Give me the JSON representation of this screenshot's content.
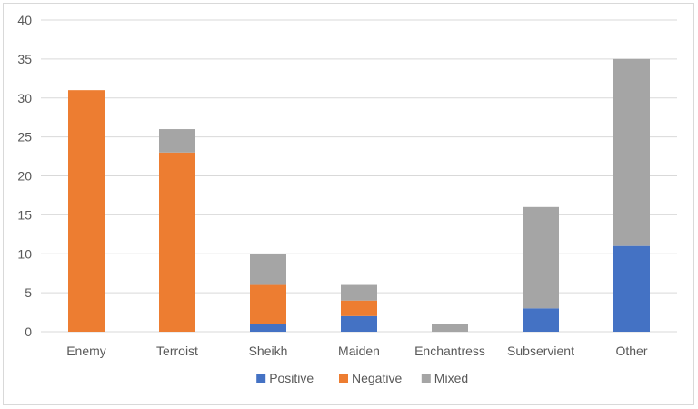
{
  "chart_data": {
    "type": "bar",
    "stacked": true,
    "categories": [
      "Enemy",
      "Terroist",
      "Sheikh",
      "Maiden",
      "Enchantress",
      "Subservient",
      "Other"
    ],
    "series": [
      {
        "name": "Positive",
        "color": "#4472c4",
        "values": [
          0,
          0,
          1,
          2,
          0,
          3,
          11
        ]
      },
      {
        "name": "Negative",
        "color": "#ed7d31",
        "values": [
          31,
          23,
          5,
          2,
          0,
          0,
          0
        ]
      },
      {
        "name": "Mixed",
        "color": "#a5a5a5",
        "values": [
          0,
          3,
          4,
          2,
          1,
          13,
          24
        ]
      }
    ],
    "ylim": [
      0,
      40
    ],
    "yticks": [
      0,
      5,
      10,
      15,
      20,
      25,
      30,
      35,
      40
    ],
    "grid": true,
    "legend_position": "bottom"
  }
}
